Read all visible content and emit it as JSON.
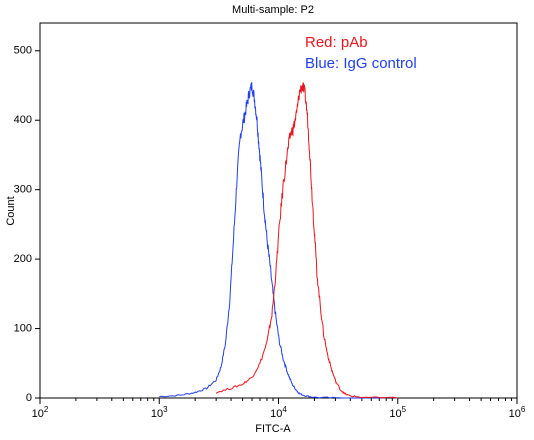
{
  "chart_data": {
    "type": "line",
    "title": "Multi-sample: P2",
    "xlabel": "FITC-A",
    "ylabel": "Count",
    "x_scale": "log",
    "xlim": [
      100,
      1000000
    ],
    "ylim": [
      0,
      540
    ],
    "x_ticks": [
      {
        "value": 100,
        "base": "10",
        "exp": "2"
      },
      {
        "value": 1000,
        "base": "10",
        "exp": "3"
      },
      {
        "value": 10000,
        "base": "10",
        "exp": "4"
      },
      {
        "value": 100000,
        "base": "10",
        "exp": "5"
      },
      {
        "value": 1000000,
        "base": "10",
        "exp": "6"
      }
    ],
    "y_ticks": [
      0,
      100,
      200,
      300,
      400,
      500
    ],
    "grid": false,
    "legend": {
      "placement": "top-right",
      "entries": [
        {
          "text": "Red: pAb",
          "color": "#e8161c"
        },
        {
          "text": "Blue: IgG control",
          "color": "#1f3ff0"
        }
      ]
    },
    "series": [
      {
        "color": "#1f3ff0",
        "x": [
          1000,
          1500,
          2000,
          2500,
          3000,
          3300,
          3600,
          3900,
          4200,
          4500,
          4800,
          5100,
          5400,
          5700,
          6000,
          6300,
          6600,
          6900,
          7200,
          7600,
          8000,
          8500,
          9000,
          9600,
          10200,
          11000,
          12000,
          13000,
          14000,
          15000,
          17000,
          20000,
          30000,
          100000
        ],
        "y": [
          2,
          4,
          8,
          14,
          26,
          45,
          80,
          140,
          230,
          320,
          380,
          400,
          420,
          440,
          450,
          430,
          400,
          360,
          320,
          270,
          230,
          190,
          150,
          110,
          80,
          55,
          35,
          20,
          12,
          6,
          3,
          1,
          0,
          0
        ]
      },
      {
        "color": "#e8161c",
        "x": [
          3000,
          4000,
          5000,
          6000,
          7000,
          8000,
          8800,
          9500,
          10200,
          11000,
          11800,
          12600,
          13400,
          14200,
          15000,
          15800,
          16600,
          17400,
          18200,
          19000,
          20000,
          21000,
          22500,
          24000,
          26000,
          28000,
          30000,
          33000,
          36000,
          40000,
          50000,
          100000
        ],
        "y": [
          8,
          14,
          20,
          30,
          50,
          80,
          120,
          180,
          250,
          310,
          350,
          380,
          390,
          410,
          440,
          450,
          440,
          410,
          360,
          300,
          240,
          180,
          130,
          90,
          60,
          40,
          25,
          12,
          6,
          3,
          1,
          0
        ]
      }
    ]
  }
}
